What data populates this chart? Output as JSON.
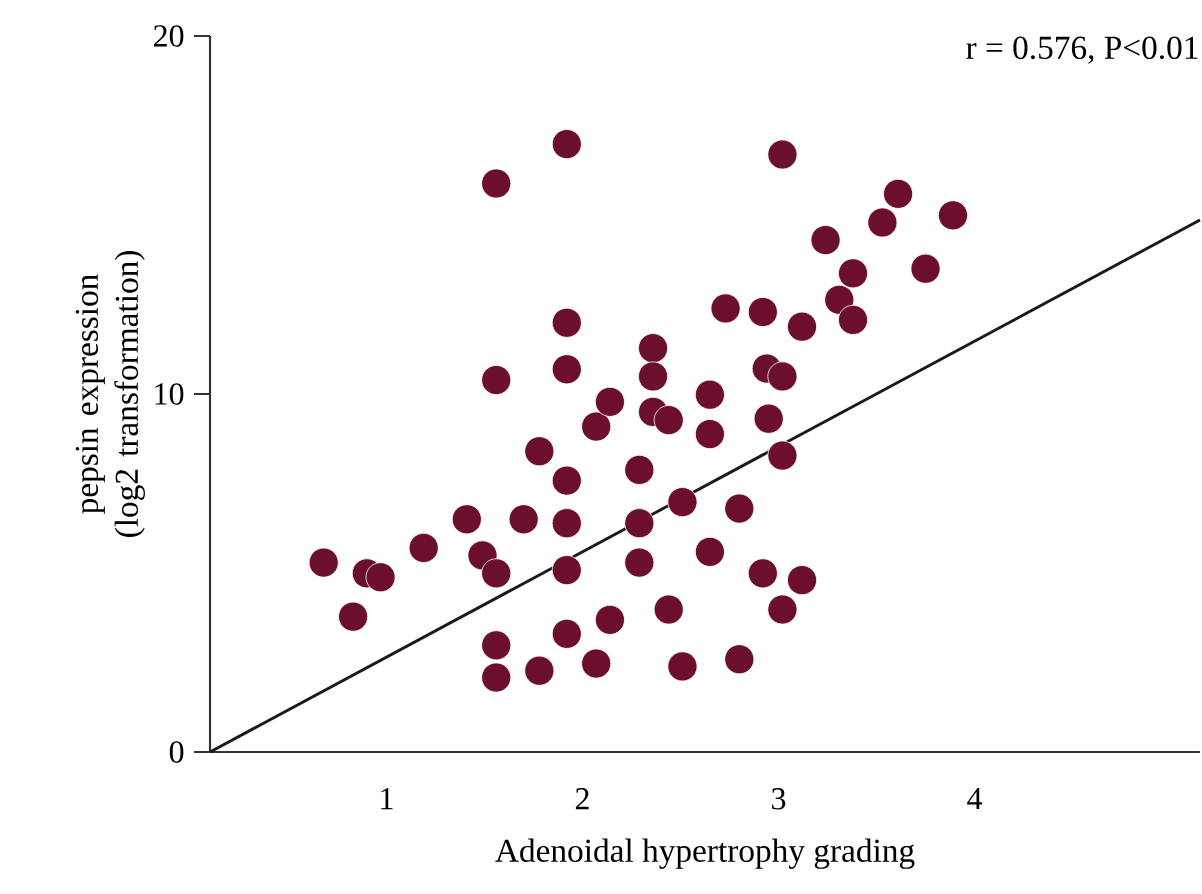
{
  "chart_data": {
    "type": "scatter",
    "xlabel": "Adenoidal hypertrophy grading",
    "ylabel": "pepsin expression (log2 transformation)",
    "annotations": [
      "r = 0.576, P<0.01"
    ],
    "xlim": [
      0.1,
      5.15
    ],
    "ylim": [
      0,
      20
    ],
    "xticks": [
      1,
      2,
      3,
      4
    ],
    "yticks": [
      0,
      10,
      20
    ],
    "grid": false,
    "series": [
      {
        "color": "#6b0f2b",
        "marker": "circle",
        "x": [
          0.68,
          0.83,
          0.9,
          0.97,
          1.19,
          1.41,
          1.49,
          1.56,
          1.56,
          1.56,
          1.56,
          1.56,
          1.7,
          1.78,
          1.78,
          1.92,
          1.92,
          1.92,
          1.92,
          1.92,
          1.92,
          1.92,
          2.07,
          2.07,
          2.14,
          2.14,
          2.29,
          2.29,
          2.29,
          2.36,
          2.36,
          2.36,
          2.44,
          2.44,
          2.51,
          2.51,
          2.65,
          2.65,
          2.65,
          2.73,
          2.8,
          2.8,
          2.92,
          2.92,
          2.94,
          3.02,
          2.95,
          3.02,
          3.02,
          3.02,
          3.12,
          3.12,
          3.24,
          3.31,
          3.38,
          3.38,
          3.53,
          3.61,
          3.75,
          3.89
        ],
        "values": [
          5.29,
          3.78,
          4.99,
          4.88,
          5.7,
          6.5,
          5.49,
          4.99,
          15.88,
          10.39,
          2.98,
          2.08,
          6.5,
          8.4,
          2.27,
          16.98,
          11.99,
          10.69,
          7.58,
          6.39,
          5.08,
          3.3,
          9.09,
          2.47,
          9.78,
          3.69,
          7.88,
          6.39,
          5.29,
          11.28,
          10.49,
          9.5,
          9.27,
          3.98,
          6.98,
          2.39,
          9.98,
          8.88,
          5.59,
          12.39,
          6.8,
          2.59,
          12.29,
          4.99,
          10.71,
          10.49,
          9.31,
          8.28,
          16.69,
          3.98,
          11.88,
          4.8,
          14.3,
          12.63,
          13.37,
          12.07,
          14.79,
          15.59,
          13.5,
          14.99
        ]
      },
      {
        "type": "line",
        "color": "#1a1a1a",
        "line_style": "solid",
        "marker": "none",
        "x": [
          0.1,
          5.15
        ],
        "values": [
          0,
          14.86
        ]
      }
    ]
  }
}
